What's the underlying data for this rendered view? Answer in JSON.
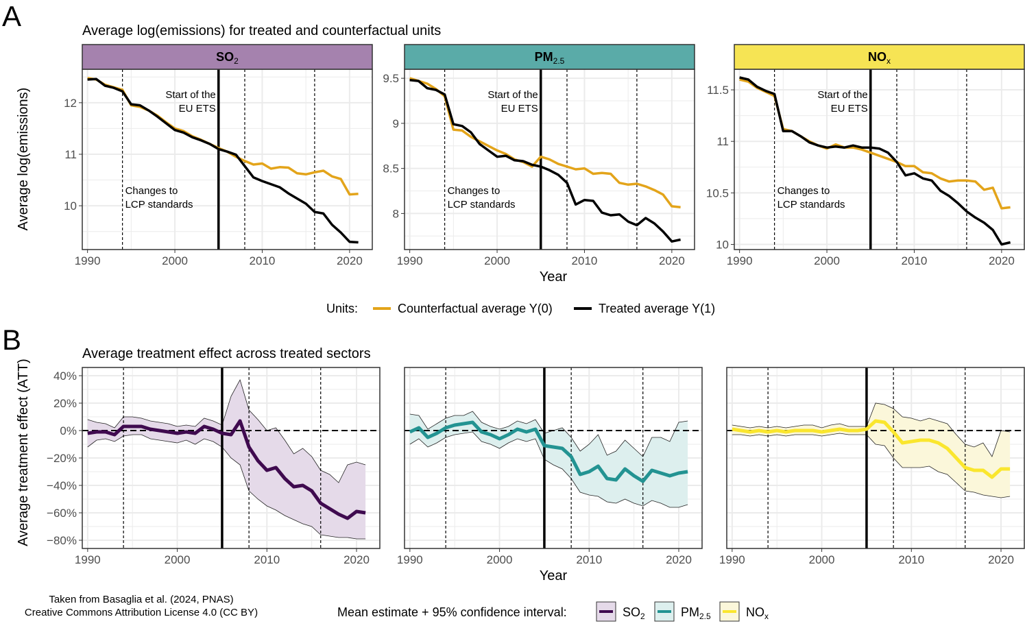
{
  "panel_a": {
    "letter": "A",
    "title": "Average log(emissions) for treated and counterfactual units",
    "ylabel": "Average log(emissions)",
    "xlabel": "Year",
    "annotation_ets_line1": "Start of the",
    "annotation_ets_line2": "EU ETS",
    "annotation_lcp_line1": "Changes to",
    "annotation_lcp_line2": "LCP standards",
    "legend": {
      "title": "Units:",
      "counterfactual": "Counterfactual average Y(0)",
      "treated": "Treated average Y(1)"
    }
  },
  "panel_b": {
    "letter": "B",
    "title": "Average treatment effect across treated sectors",
    "ylabel": "Average treatment effect (ATT)",
    "xlabel": "Year",
    "legend_title": "Mean estimate + 95% confidence interval:"
  },
  "pollutants": [
    {
      "key": "so2",
      "label": "SO",
      "sub": "2",
      "strip_color": "#A582AE",
      "line_color": "#3F0A4F",
      "fill_color": "#E5DAE9"
    },
    {
      "key": "pm",
      "label": "PM",
      "sub": "2.5",
      "strip_color": "#5AABA8",
      "line_color": "#239392",
      "fill_color": "#DDEFEE"
    },
    {
      "key": "nox",
      "label": "NO",
      "sub": "x",
      "strip_color": "#F6E454",
      "line_color": "#FAE62E",
      "fill_color": "#FBF7DA"
    }
  ],
  "credit": {
    "line1": "Taken from Basaglia et al. (2024, PNAS)",
    "line2": "Creative Commons Attribution License 4.0 (CC BY)"
  },
  "colors": {
    "counterfactual": "#E3A41A",
    "treated": "#000000",
    "grid": "#EBEBEB"
  },
  "chart_data": [
    {
      "type": "line",
      "panel": "A",
      "facet": "SO2",
      "x": [
        1990,
        1991,
        1992,
        1993,
        1994,
        1995,
        1996,
        1997,
        1998,
        1999,
        2000,
        2001,
        2002,
        2003,
        2004,
        2005,
        2006,
        2007,
        2008,
        2009,
        2010,
        2011,
        2012,
        2013,
        2014,
        2015,
        2016,
        2017,
        2018,
        2019,
        2020,
        2021
      ],
      "series": [
        {
          "name": "Counterfactual average Y(0)",
          "values": [
            12.48,
            12.45,
            12.35,
            12.3,
            12.25,
            11.95,
            11.92,
            11.85,
            11.75,
            11.62,
            11.5,
            11.45,
            11.35,
            11.28,
            11.2,
            11.12,
            11.05,
            10.95,
            10.87,
            10.8,
            10.82,
            10.72,
            10.75,
            10.74,
            10.63,
            10.61,
            10.65,
            10.68,
            10.57,
            10.52,
            10.22,
            10.23
          ]
        },
        {
          "name": "Treated average Y(1)",
          "values": [
            12.45,
            12.46,
            12.33,
            12.29,
            12.22,
            11.97,
            11.95,
            11.85,
            11.73,
            11.6,
            11.47,
            11.42,
            11.33,
            11.27,
            11.2,
            11.1,
            11.05,
            10.99,
            10.77,
            10.55,
            10.48,
            10.42,
            10.36,
            10.24,
            10.14,
            10.04,
            9.88,
            9.85,
            9.63,
            9.48,
            9.3,
            9.29
          ]
        }
      ],
      "xlim": [
        1989.4,
        2022.6
      ],
      "ylim": [
        9.15,
        12.65
      ],
      "yticks": [
        10,
        11,
        12
      ],
      "xticks": [
        1990,
        2000,
        2010,
        2020
      ]
    },
    {
      "type": "line",
      "panel": "A",
      "facet": "PM2.5",
      "x": [
        1990,
        1991,
        1992,
        1993,
        1994,
        1995,
        1996,
        1997,
        1998,
        1999,
        2000,
        2001,
        2002,
        2003,
        2004,
        2005,
        2006,
        2007,
        2008,
        2009,
        2010,
        2011,
        2012,
        2013,
        2014,
        2015,
        2016,
        2017,
        2018,
        2019,
        2020,
        2021
      ],
      "series": [
        {
          "name": "Counterfactual average Y(0)",
          "values": [
            9.5,
            9.47,
            9.44,
            9.38,
            9.3,
            8.93,
            8.92,
            8.85,
            8.8,
            8.75,
            8.7,
            8.66,
            8.6,
            8.57,
            8.52,
            8.63,
            8.6,
            8.55,
            8.52,
            8.49,
            8.5,
            8.44,
            8.45,
            8.44,
            8.34,
            8.32,
            8.33,
            8.3,
            8.26,
            8.21,
            8.08,
            8.07
          ]
        },
        {
          "name": "Treated average Y(1)",
          "values": [
            9.48,
            9.47,
            9.39,
            9.37,
            9.32,
            8.99,
            8.97,
            8.9,
            8.77,
            8.7,
            8.63,
            8.64,
            8.59,
            8.58,
            8.54,
            8.52,
            8.48,
            8.43,
            8.34,
            8.1,
            8.15,
            8.14,
            8.01,
            7.98,
            7.99,
            7.91,
            7.87,
            7.95,
            7.89,
            7.8,
            7.69,
            7.71
          ]
        }
      ],
      "xlim": [
        1989.4,
        2022.6
      ],
      "ylim": [
        7.6,
        9.6
      ],
      "yticks": [
        8.0,
        8.5,
        9.0,
        9.5
      ],
      "xticks": [
        1990,
        2000,
        2010,
        2020
      ]
    },
    {
      "type": "line",
      "panel": "A",
      "facet": "NOx",
      "x": [
        1990,
        1991,
        1992,
        1993,
        1994,
        1995,
        1996,
        1997,
        1998,
        1999,
        2000,
        2001,
        2002,
        2003,
        2004,
        2005,
        2006,
        2007,
        2008,
        2009,
        2010,
        2011,
        2012,
        2013,
        2014,
        2015,
        2016,
        2017,
        2018,
        2019,
        2020,
        2021
      ],
      "series": [
        {
          "name": "Counterfactual average Y(0)",
          "values": [
            11.6,
            11.58,
            11.52,
            11.48,
            11.44,
            11.12,
            11.1,
            11.05,
            11.0,
            10.96,
            10.93,
            10.97,
            10.94,
            10.94,
            10.92,
            10.89,
            10.86,
            10.83,
            10.8,
            10.76,
            10.76,
            10.7,
            10.69,
            10.64,
            10.61,
            10.62,
            10.62,
            10.61,
            10.53,
            10.55,
            10.35,
            10.36
          ]
        },
        {
          "name": "Treated average Y(1)",
          "values": [
            11.62,
            11.6,
            11.53,
            11.49,
            11.46,
            11.1,
            11.1,
            11.05,
            10.99,
            10.96,
            10.94,
            10.95,
            10.94,
            10.96,
            10.94,
            10.94,
            10.93,
            10.89,
            10.8,
            10.67,
            10.69,
            10.64,
            10.62,
            10.52,
            10.47,
            10.4,
            10.32,
            10.26,
            10.21,
            10.14,
            10.0,
            10.02
          ]
        }
      ],
      "xlim": [
        1989.4,
        2022.6
      ],
      "ylim": [
        9.95,
        11.7
      ],
      "yticks": [
        10.0,
        10.5,
        11.0,
        11.5
      ],
      "xticks": [
        1990,
        2000,
        2010,
        2020
      ]
    },
    {
      "type": "area",
      "panel": "B",
      "facet": "SO2",
      "x": [
        1990,
        1991,
        1992,
        1993,
        1994,
        1995,
        1996,
        1997,
        1998,
        1999,
        2000,
        2001,
        2002,
        2003,
        2004,
        2005,
        2006,
        2007,
        2008,
        2009,
        2010,
        2011,
        2012,
        2013,
        2014,
        2015,
        2016,
        2017,
        2018,
        2019,
        2020,
        2021
      ],
      "series": [
        {
          "name": "mean",
          "values": [
            -2,
            -1,
            -1,
            -3,
            3,
            3,
            3,
            1,
            0,
            -1,
            -2,
            -1,
            -2,
            3,
            1,
            -2,
            -3,
            7,
            -12,
            -22,
            -29,
            -27,
            -35,
            -41,
            -40,
            -44,
            -53,
            -57,
            -61,
            -64,
            -59,
            -60
          ]
        },
        {
          "name": "lower",
          "values": [
            -12,
            -7,
            -6,
            -8,
            -4,
            -3,
            -3,
            -6,
            -7,
            -8,
            -9,
            -7,
            -10,
            -6,
            -8,
            -12,
            -20,
            -25,
            -44,
            -50,
            -55,
            -58,
            -62,
            -65,
            -68,
            -70,
            -76,
            -77,
            -78,
            -78,
            -79,
            -79
          ]
        },
        {
          "name": "upper",
          "values": [
            8,
            6,
            5,
            2,
            10,
            10,
            9,
            7,
            6,
            5,
            3,
            4,
            3,
            9,
            7,
            4,
            25,
            37,
            15,
            8,
            0,
            2,
            -7,
            -17,
            -13,
            -19,
            -29,
            -32,
            -38,
            -25,
            -23,
            -25
          ]
        }
      ],
      "xlim": [
        1989.4,
        2022.6
      ],
      "ylim": [
        -86,
        46
      ],
      "yticks": [
        -80,
        -60,
        -40,
        -20,
        0,
        20,
        40
      ],
      "ytick_labels": [
        "−80%",
        "−60%",
        "−40%",
        "−20%",
        "0%",
        "20%",
        "40%"
      ],
      "xticks": [
        1990,
        2000,
        2010,
        2020
      ]
    },
    {
      "type": "area",
      "panel": "B",
      "facet": "PM2.5",
      "x": [
        1990,
        1991,
        1992,
        1993,
        1994,
        1995,
        1996,
        1997,
        1998,
        1999,
        2000,
        2001,
        2002,
        2003,
        2004,
        2005,
        2006,
        2007,
        2008,
        2009,
        2010,
        2011,
        2012,
        2013,
        2014,
        2015,
        2016,
        2017,
        2018,
        2019,
        2020,
        2021
      ],
      "series": [
        {
          "name": "mean",
          "values": [
            -1,
            2,
            -5,
            -2,
            2,
            4,
            5,
            6,
            -1,
            -3,
            -6,
            -3,
            1,
            -1,
            1,
            -11,
            -12,
            -13,
            -19,
            -32,
            -30,
            -26,
            -35,
            -36,
            -28,
            -33,
            -37,
            -29,
            -31,
            -33,
            -31,
            -30
          ]
        },
        {
          "name": "lower",
          "values": [
            -10,
            -6,
            -12,
            -9,
            -5,
            -3,
            -2,
            -1,
            -8,
            -10,
            -13,
            -9,
            -6,
            -8,
            -6,
            -21,
            -25,
            -28,
            -35,
            -45,
            -47,
            -48,
            -52,
            -53,
            -50,
            -53,
            -55,
            -51,
            -53,
            -56,
            -56,
            -54
          ]
        },
        {
          "name": "upper",
          "values": [
            12,
            11,
            1,
            5,
            9,
            11,
            11,
            14,
            6,
            3,
            1,
            3,
            7,
            5,
            8,
            -2,
            0,
            2,
            -5,
            -15,
            -10,
            -3,
            -18,
            -15,
            -7,
            -13,
            -19,
            -5,
            -5,
            -8,
            6,
            7
          ]
        }
      ],
      "xlim": [
        1989.4,
        2022.6
      ],
      "ylim": [
        -86,
        46
      ],
      "xticks": [
        1990,
        2000,
        2010,
        2020
      ]
    },
    {
      "type": "area",
      "panel": "B",
      "facet": "NOx",
      "x": [
        1990,
        1991,
        1992,
        1993,
        1994,
        1995,
        1996,
        1997,
        1998,
        1999,
        2000,
        2001,
        2002,
        2003,
        2004,
        2005,
        2006,
        2007,
        2008,
        2009,
        2010,
        2011,
        2012,
        2013,
        2014,
        2015,
        2016,
        2017,
        2018,
        2019,
        2020,
        2021
      ],
      "series": [
        {
          "name": "mean",
          "values": [
            1,
            0,
            -1,
            0,
            -1,
            0,
            -1,
            0,
            0,
            0,
            -1,
            0,
            1,
            0,
            0,
            1,
            7,
            6,
            -1,
            -9,
            -8,
            -7,
            -7,
            -9,
            -13,
            -20,
            -27,
            -29,
            -29,
            -34,
            -28,
            -28
          ]
        },
        {
          "name": "lower",
          "values": [
            -3,
            -3,
            -4,
            -3,
            -4,
            -3,
            -4,
            -3,
            -3,
            -3,
            -4,
            -3,
            -2,
            -3,
            -3,
            -3,
            -10,
            -11,
            -20,
            -27,
            -27,
            -27,
            -26,
            -30,
            -32,
            -38,
            -44,
            -45,
            -47,
            -48,
            -49,
            -48
          ]
        },
        {
          "name": "upper",
          "values": [
            4,
            3,
            2,
            3,
            2,
            3,
            2,
            3,
            4,
            4,
            2,
            4,
            5,
            3,
            3,
            3,
            20,
            19,
            16,
            10,
            9,
            7,
            9,
            7,
            5,
            -3,
            -10,
            -12,
            -9,
            -19,
            0,
            -1
          ]
        }
      ],
      "xlim": [
        1989.4,
        2022.6
      ],
      "ylim": [
        -86,
        46
      ],
      "xticks": [
        1990,
        2000,
        2010,
        2020
      ]
    }
  ],
  "reference_years": {
    "lcp": [
      1994,
      2008,
      2016
    ],
    "ets": 2005
  }
}
